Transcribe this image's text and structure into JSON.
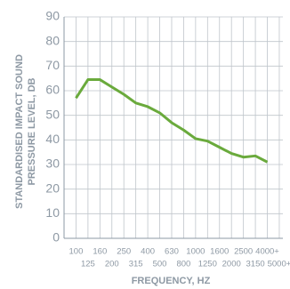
{
  "chart_data": {
    "type": "line",
    "y_label": [
      "STANDARDISED IMPACT SOUND",
      "PRESSURE LEVEL, DB"
    ],
    "x_label": "FREQUENCY, HZ",
    "categories": [
      "100",
      "125",
      "160",
      "200",
      "250",
      "315",
      "400",
      "500",
      "630",
      "800",
      "1000",
      "1250",
      "1600",
      "2000",
      "2500",
      "3150",
      "4000+",
      "5000+"
    ],
    "values": [
      57,
      64.5,
      64.5,
      61.5,
      58.5,
      55,
      53.5,
      51,
      47,
      44,
      40.5,
      39.5,
      37,
      34.5,
      33,
      33.5,
      31,
      null
    ],
    "color": "#6aaa3c",
    "ylim": [
      0,
      90
    ],
    "yticks": [
      0,
      10,
      20,
      30,
      40,
      50,
      60,
      70,
      80,
      90
    ],
    "grid": true
  }
}
